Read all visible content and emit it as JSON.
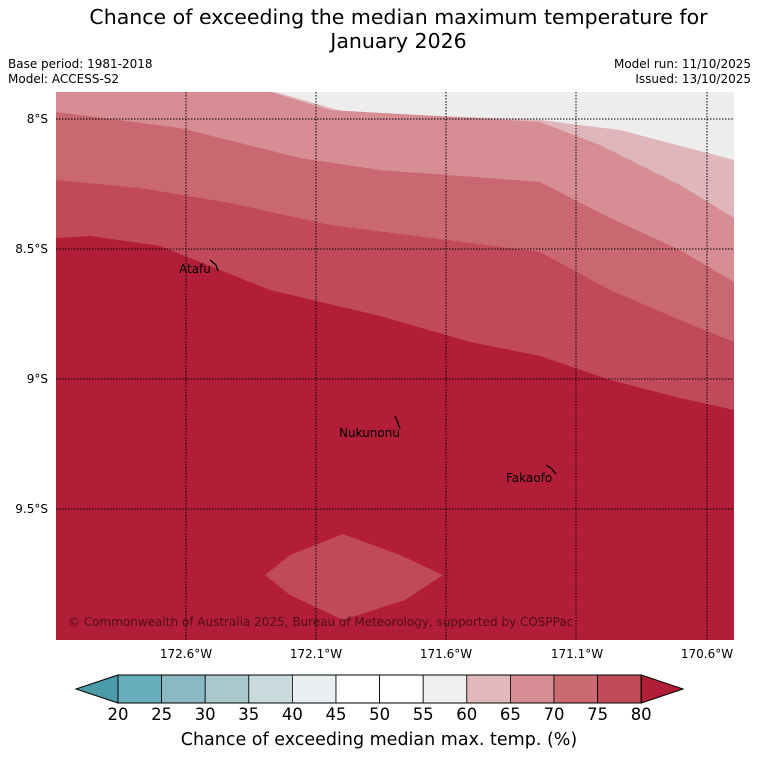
{
  "title": {
    "line1": "Chance of exceeding the median maximum temperature for",
    "line2": "January 2026"
  },
  "meta": {
    "base_period": "Base period: 1981-2018",
    "model": "Model: ACCESS-S2",
    "model_run": "Model run: 11/10/2025",
    "issued": "Issued: 13/10/2025"
  },
  "map": {
    "lat_labels": [
      "8°S",
      "8.5°S",
      "9°S",
      "9.5°S"
    ],
    "lon_labels": [
      "172.6°W",
      "172.1°W",
      "171.6°W",
      "171.1°W",
      "170.6°W"
    ],
    "places": [
      "Atafu",
      "Nukunonu",
      "Fakaofo"
    ],
    "copyright": "© Commonwealth of Australia 2025, Bureau of Meteorology, supported by COSPPac",
    "band_colors": [
      "#ededee",
      "#dfb6bb",
      "#d68d93",
      "#ca6871",
      "#c0495a",
      "#b21d38"
    ]
  },
  "colorbar": {
    "ticks": [
      "20",
      "25",
      "30",
      "35",
      "40",
      "45",
      "50",
      "55",
      "60",
      "65",
      "70",
      "75",
      "80"
    ],
    "colors": [
      "#69aebb",
      "#8bb9c2",
      "#a9c8cd",
      "#c8dadb",
      "#eaf0f1",
      "#ffffff",
      "#ffffff",
      "#efefef",
      "#e1b9bd",
      "#d68c92",
      "#ca6a72",
      "#c04a58"
    ],
    "low_color": "#4c9ba8",
    "high_color": "#b21d38",
    "title": "Chance of exceeding median max. temp. (%)"
  }
}
